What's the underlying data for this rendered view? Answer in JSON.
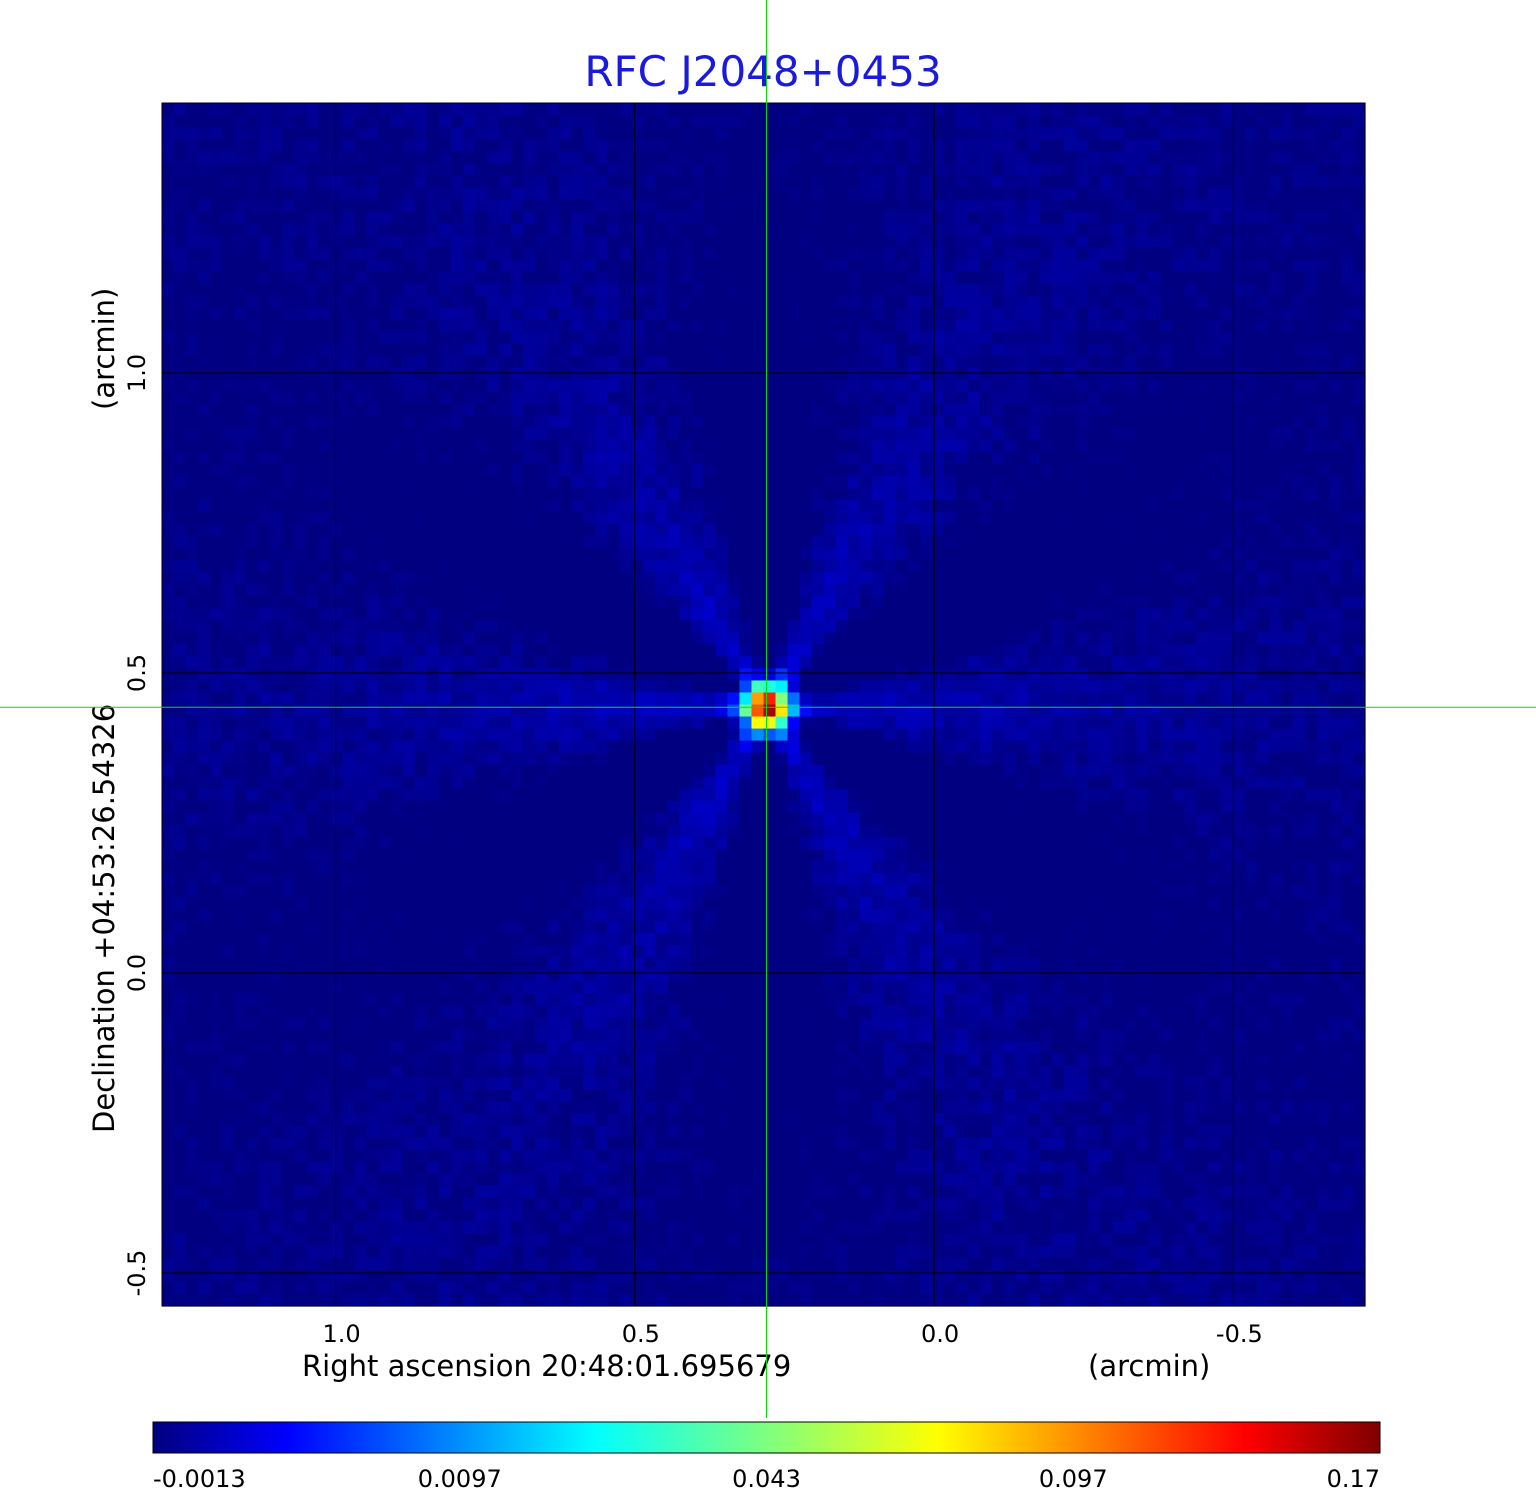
{
  "chart_data": {
    "type": "heatmap",
    "title": "RFC J2048+0453",
    "xlabel": "Right ascension  20:48:01.695679",
    "x_unit_label": "(arcmin)",
    "ylabel": "Declination  +04:53:26.54326",
    "y_unit_label": "(arcmin)",
    "x_axis": {
      "range": [
        1.29,
        -0.72
      ],
      "reversed": true,
      "ticks": [
        1.0,
        0.5,
        0.0,
        -0.5
      ],
      "tick_labels": [
        "1.0",
        "0.5",
        "0.0",
        "-0.5"
      ]
    },
    "y_axis": {
      "range": [
        -0.555,
        1.45
      ],
      "ticks": [
        -0.5,
        0.0,
        0.5,
        1.0
      ],
      "tick_labels": [
        "-0.5",
        "0.0",
        "0.5",
        "1.0"
      ]
    },
    "grid": true,
    "crosshair": {
      "x": 0.28,
      "y": 0.443,
      "color": "#00e000"
    },
    "source": {
      "x": 0.28,
      "y": 0.443,
      "peak": 0.17
    },
    "colorbar": {
      "colormap": "jet",
      "placement": "bottom",
      "tick_labels": [
        "-0.0013",
        "0.0097",
        "0.043",
        "0.097",
        "0.17"
      ]
    },
    "background_level": -0.0005
  }
}
